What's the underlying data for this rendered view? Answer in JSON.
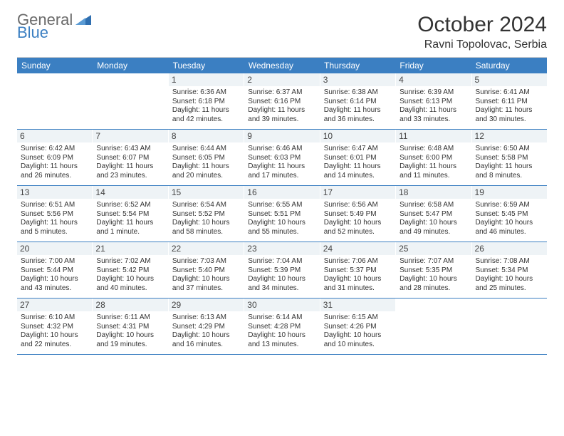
{
  "logo": {
    "line1": "General",
    "line2": "Blue",
    "tri_color": "#2f6fb0"
  },
  "title": "October 2024",
  "location": "Ravni Topolovac, Serbia",
  "colors": {
    "header_bar": "#3b7fc2",
    "row_divider": "#3b7fc2",
    "daynum_bg": "#eef3f6",
    "text": "#333333",
    "logo_gray": "#6a6a6a",
    "logo_blue": "#3b7fc2"
  },
  "days_of_week": [
    "Sunday",
    "Monday",
    "Tuesday",
    "Wednesday",
    "Thursday",
    "Friday",
    "Saturday"
  ],
  "weeks": [
    [
      {
        "n": "",
        "sr": "",
        "ss": "",
        "dl": ""
      },
      {
        "n": "",
        "sr": "",
        "ss": "",
        "dl": ""
      },
      {
        "n": "1",
        "sr": "Sunrise: 6:36 AM",
        "ss": "Sunset: 6:18 PM",
        "dl": "Daylight: 11 hours and 42 minutes."
      },
      {
        "n": "2",
        "sr": "Sunrise: 6:37 AM",
        "ss": "Sunset: 6:16 PM",
        "dl": "Daylight: 11 hours and 39 minutes."
      },
      {
        "n": "3",
        "sr": "Sunrise: 6:38 AM",
        "ss": "Sunset: 6:14 PM",
        "dl": "Daylight: 11 hours and 36 minutes."
      },
      {
        "n": "4",
        "sr": "Sunrise: 6:39 AM",
        "ss": "Sunset: 6:13 PM",
        "dl": "Daylight: 11 hours and 33 minutes."
      },
      {
        "n": "5",
        "sr": "Sunrise: 6:41 AM",
        "ss": "Sunset: 6:11 PM",
        "dl": "Daylight: 11 hours and 30 minutes."
      }
    ],
    [
      {
        "n": "6",
        "sr": "Sunrise: 6:42 AM",
        "ss": "Sunset: 6:09 PM",
        "dl": "Daylight: 11 hours and 26 minutes."
      },
      {
        "n": "7",
        "sr": "Sunrise: 6:43 AM",
        "ss": "Sunset: 6:07 PM",
        "dl": "Daylight: 11 hours and 23 minutes."
      },
      {
        "n": "8",
        "sr": "Sunrise: 6:44 AM",
        "ss": "Sunset: 6:05 PM",
        "dl": "Daylight: 11 hours and 20 minutes."
      },
      {
        "n": "9",
        "sr": "Sunrise: 6:46 AM",
        "ss": "Sunset: 6:03 PM",
        "dl": "Daylight: 11 hours and 17 minutes."
      },
      {
        "n": "10",
        "sr": "Sunrise: 6:47 AM",
        "ss": "Sunset: 6:01 PM",
        "dl": "Daylight: 11 hours and 14 minutes."
      },
      {
        "n": "11",
        "sr": "Sunrise: 6:48 AM",
        "ss": "Sunset: 6:00 PM",
        "dl": "Daylight: 11 hours and 11 minutes."
      },
      {
        "n": "12",
        "sr": "Sunrise: 6:50 AM",
        "ss": "Sunset: 5:58 PM",
        "dl": "Daylight: 11 hours and 8 minutes."
      }
    ],
    [
      {
        "n": "13",
        "sr": "Sunrise: 6:51 AM",
        "ss": "Sunset: 5:56 PM",
        "dl": "Daylight: 11 hours and 5 minutes."
      },
      {
        "n": "14",
        "sr": "Sunrise: 6:52 AM",
        "ss": "Sunset: 5:54 PM",
        "dl": "Daylight: 11 hours and 1 minute."
      },
      {
        "n": "15",
        "sr": "Sunrise: 6:54 AM",
        "ss": "Sunset: 5:52 PM",
        "dl": "Daylight: 10 hours and 58 minutes."
      },
      {
        "n": "16",
        "sr": "Sunrise: 6:55 AM",
        "ss": "Sunset: 5:51 PM",
        "dl": "Daylight: 10 hours and 55 minutes."
      },
      {
        "n": "17",
        "sr": "Sunrise: 6:56 AM",
        "ss": "Sunset: 5:49 PM",
        "dl": "Daylight: 10 hours and 52 minutes."
      },
      {
        "n": "18",
        "sr": "Sunrise: 6:58 AM",
        "ss": "Sunset: 5:47 PM",
        "dl": "Daylight: 10 hours and 49 minutes."
      },
      {
        "n": "19",
        "sr": "Sunrise: 6:59 AM",
        "ss": "Sunset: 5:45 PM",
        "dl": "Daylight: 10 hours and 46 minutes."
      }
    ],
    [
      {
        "n": "20",
        "sr": "Sunrise: 7:00 AM",
        "ss": "Sunset: 5:44 PM",
        "dl": "Daylight: 10 hours and 43 minutes."
      },
      {
        "n": "21",
        "sr": "Sunrise: 7:02 AM",
        "ss": "Sunset: 5:42 PM",
        "dl": "Daylight: 10 hours and 40 minutes."
      },
      {
        "n": "22",
        "sr": "Sunrise: 7:03 AM",
        "ss": "Sunset: 5:40 PM",
        "dl": "Daylight: 10 hours and 37 minutes."
      },
      {
        "n": "23",
        "sr": "Sunrise: 7:04 AM",
        "ss": "Sunset: 5:39 PM",
        "dl": "Daylight: 10 hours and 34 minutes."
      },
      {
        "n": "24",
        "sr": "Sunrise: 7:06 AM",
        "ss": "Sunset: 5:37 PM",
        "dl": "Daylight: 10 hours and 31 minutes."
      },
      {
        "n": "25",
        "sr": "Sunrise: 7:07 AM",
        "ss": "Sunset: 5:35 PM",
        "dl": "Daylight: 10 hours and 28 minutes."
      },
      {
        "n": "26",
        "sr": "Sunrise: 7:08 AM",
        "ss": "Sunset: 5:34 PM",
        "dl": "Daylight: 10 hours and 25 minutes."
      }
    ],
    [
      {
        "n": "27",
        "sr": "Sunrise: 6:10 AM",
        "ss": "Sunset: 4:32 PM",
        "dl": "Daylight: 10 hours and 22 minutes."
      },
      {
        "n": "28",
        "sr": "Sunrise: 6:11 AM",
        "ss": "Sunset: 4:31 PM",
        "dl": "Daylight: 10 hours and 19 minutes."
      },
      {
        "n": "29",
        "sr": "Sunrise: 6:13 AM",
        "ss": "Sunset: 4:29 PM",
        "dl": "Daylight: 10 hours and 16 minutes."
      },
      {
        "n": "30",
        "sr": "Sunrise: 6:14 AM",
        "ss": "Sunset: 4:28 PM",
        "dl": "Daylight: 10 hours and 13 minutes."
      },
      {
        "n": "31",
        "sr": "Sunrise: 6:15 AM",
        "ss": "Sunset: 4:26 PM",
        "dl": "Daylight: 10 hours and 10 minutes."
      },
      {
        "n": "",
        "sr": "",
        "ss": "",
        "dl": ""
      },
      {
        "n": "",
        "sr": "",
        "ss": "",
        "dl": ""
      }
    ]
  ]
}
